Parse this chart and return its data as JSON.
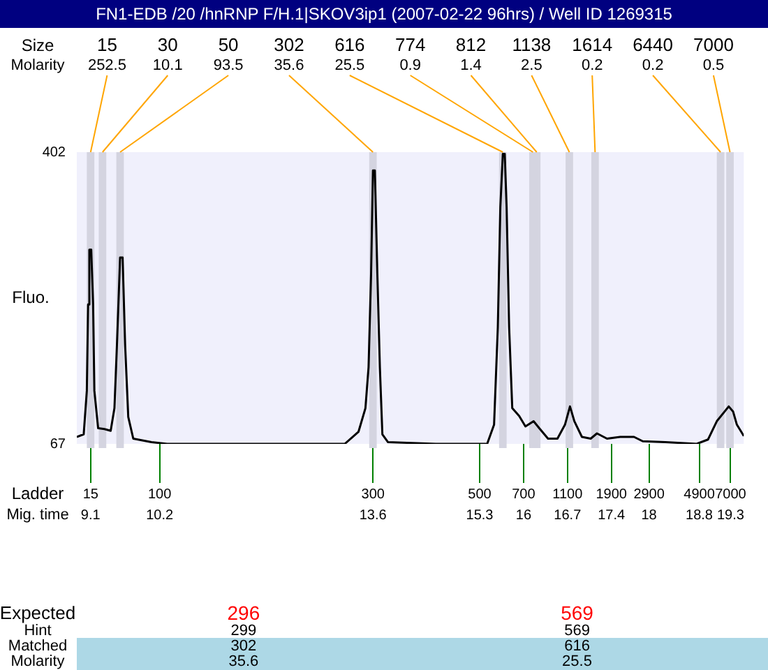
{
  "chart_data": {
    "type": "line",
    "title": "FN1-EDB /20 /hnRNP F/H.1|SKOV3ip1 (2007-02-22 96hrs) / Well ID 1269315",
    "xlabel": "Mig. time",
    "ylabel": "Fluo.",
    "x": [
      8.88,
      8.99,
      9.04,
      9.06,
      9.08,
      9.11,
      9.14,
      9.16,
      9.22,
      9.32,
      9.42,
      9.48,
      9.52,
      9.57,
      9.61,
      9.65,
      9.7,
      9.78,
      10.07,
      10.32,
      12.44,
      13.15,
      13.37,
      13.48,
      13.53,
      13.57,
      13.6,
      13.63,
      13.67,
      13.71,
      13.75,
      13.84,
      14.6,
      15.42,
      15.53,
      15.59,
      15.63,
      15.67,
      15.7,
      15.73,
      15.77,
      15.82,
      15.93,
      16.03,
      16.16,
      16.25,
      16.39,
      16.54,
      16.66,
      16.74,
      16.81,
      16.93,
      17.07,
      17.17,
      17.33,
      17.54,
      17.76,
      17.9,
      18.26,
      18.76,
      18.94,
      19.08,
      19.27,
      19.34,
      19.4,
      19.46,
      19.51
    ],
    "series": [
      {
        "color": "#000000",
        "values": [
          75,
          78,
          128,
          227,
          290,
          290,
          227,
          128,
          85,
          84,
          82,
          108,
          181,
          281,
          281,
          181,
          98,
          73,
          69,
          67,
          67,
          67,
          81,
          108,
          155,
          262,
          381,
          381,
          262,
          155,
          78,
          69,
          67,
          67,
          89,
          201,
          339,
          400,
          400,
          339,
          201,
          108,
          99,
          87,
          93,
          85,
          73,
          73,
          89,
          110,
          93,
          75,
          73,
          79,
          73,
          75,
          75,
          70,
          69,
          67,
          72,
          93,
          110,
          104,
          89,
          82,
          76
        ]
      }
    ],
    "xlim": [
      8.88,
      19.51
    ],
    "xticks": [
      9.1,
      10.2,
      13.6,
      15.3,
      16,
      16.7,
      17.4,
      18,
      18.8,
      19.3
    ],
    "ylim": [
      67,
      402
    ],
    "yticks": [
      67,
      402
    ],
    "grid": false,
    "legend": false,
    "marker": "none",
    "line_style": "solid",
    "bands": [
      {
        "axis": "x",
        "from": 9.04,
        "to": 9.16,
        "color": "#d4d4e0"
      },
      {
        "axis": "x",
        "from": 9.23,
        "to": 9.35,
        "color": "#d4d4e0"
      },
      {
        "axis": "x",
        "from": 9.51,
        "to": 9.63,
        "color": "#d4d4e0"
      },
      {
        "axis": "x",
        "from": 13.54,
        "to": 13.66,
        "color": "#d4d4e0"
      },
      {
        "axis": "x",
        "from": 15.61,
        "to": 15.73,
        "color": "#d4d4e0"
      },
      {
        "axis": "x",
        "from": 16.09,
        "to": 16.21,
        "color": "#d4d4e0"
      },
      {
        "axis": "x",
        "from": 16.15,
        "to": 16.27,
        "color": "#d4d4e0"
      },
      {
        "axis": "x",
        "from": 16.67,
        "to": 16.79,
        "color": "#d4d4e0"
      },
      {
        "axis": "x",
        "from": 17.08,
        "to": 17.2,
        "color": "#d4d4e0"
      },
      {
        "axis": "x",
        "from": 19.08,
        "to": 19.2,
        "color": "#d4d4e0"
      },
      {
        "axis": "x",
        "from": 19.23,
        "to": 19.35,
        "color": "#d4d4e0"
      }
    ],
    "annotations": [
      "Size",
      "Molarity",
      {
        "text": "15",
        "x": 9.1,
        "y": 402
      },
      "252.5",
      {
        "text": "30",
        "x": 9.29,
        "y": 402
      },
      "10.1",
      {
        "text": "50",
        "x": 9.57,
        "y": 402
      },
      "93.5",
      {
        "text": "302",
        "x": 13.6,
        "y": 402
      },
      "35.6",
      {
        "text": "616",
        "x": 15.67,
        "y": 402
      },
      "25.5",
      {
        "text": "774",
        "x": 16.15,
        "y": 402
      },
      "0.9",
      {
        "text": "812",
        "x": 16.21,
        "y": 402
      },
      "1.4",
      {
        "text": "1138",
        "x": 16.73,
        "y": 402
      },
      "2.5",
      {
        "text": "1614",
        "x": 17.14,
        "y": 402
      },
      "0.2",
      {
        "text": "6440",
        "x": 19.14,
        "y": 402
      },
      "0.2",
      {
        "text": "7000",
        "x": 19.29,
        "y": 402
      },
      "0.5",
      "Ladder",
      "15",
      "100",
      "300",
      "500",
      "700",
      "1100",
      "1900",
      "2900",
      "4900",
      "7000",
      "Expected",
      "Hint",
      "Matched",
      "Molarity",
      "296",
      "299",
      "302",
      "35.6",
      "569",
      "569",
      "616",
      "25.5"
    ]
  }
}
